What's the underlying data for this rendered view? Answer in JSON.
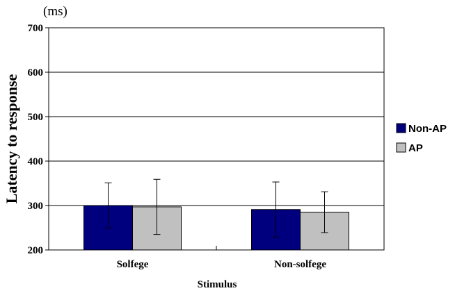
{
  "chart_data": {
    "type": "bar",
    "unit_label": "(ms)",
    "ylabel": "Latency to response",
    "xlabel": "Stimulus",
    "ylim": [
      200,
      700
    ],
    "yticks": [
      "200",
      "300",
      "400",
      "500",
      "600",
      "700"
    ],
    "ytick_values": [
      200,
      300,
      400,
      500,
      600,
      700
    ],
    "grid": true,
    "legend_position": "right",
    "categories": [
      "Solfege",
      "Non-solfege"
    ],
    "series": [
      {
        "name": "Non-AP",
        "color": "#00007f",
        "values": [
          300,
          291
        ],
        "errors": [
          51,
          62
        ]
      },
      {
        "name": "AP",
        "color": "#c0c0c0",
        "values": [
          297,
          285
        ],
        "errors": [
          62,
          46
        ]
      }
    ]
  }
}
